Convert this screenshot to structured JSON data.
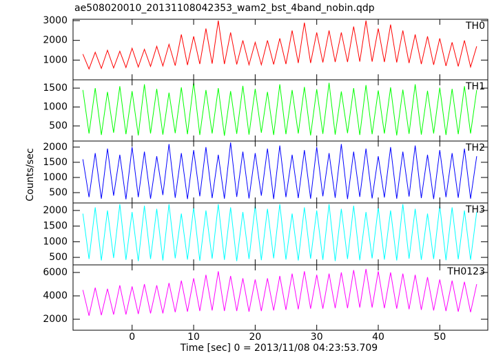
{
  "chart_data": [
    {
      "type": "line",
      "title": "ae508020010_20131108042353_wam2_bst_4band_nobin.qdp",
      "ylabel": "Counts/sec",
      "x": [
        -8,
        -7,
        -6,
        -5,
        -4,
        -3,
        -2,
        -1,
        0,
        1,
        2,
        3,
        4,
        5,
        6,
        7,
        8,
        9,
        10,
        11,
        12,
        13,
        14,
        15,
        16,
        17,
        18,
        19,
        20,
        21,
        22,
        23,
        24,
        25,
        26,
        27,
        28,
        29,
        30,
        31,
        32,
        33,
        34,
        35,
        36,
        37,
        38,
        39,
        40,
        41,
        42,
        43,
        44,
        45,
        46,
        47,
        48,
        49,
        50,
        51,
        52,
        53,
        54,
        55,
        56
      ],
      "series": [
        {
          "name": "TH0",
          "color": "#ff0000",
          "values": [
            1300,
            550,
            1400,
            580,
            1500,
            600,
            1450,
            620,
            1600,
            650,
            1550,
            680,
            1700,
            700,
            1800,
            720,
            2300,
            750,
            2200,
            800,
            2600,
            820,
            3000,
            800,
            2400,
            780,
            2000,
            760,
            1900,
            760,
            2000,
            780,
            2100,
            800,
            2500,
            850,
            2900,
            850,
            2400,
            880,
            2500,
            900,
            2400,
            900,
            2700,
            920,
            3000,
            920,
            2600,
            900,
            2800,
            880,
            2500,
            850,
            2300,
            800,
            2200,
            760,
            2100,
            700,
            1900,
            680,
            2000,
            650,
            1700
          ]
        }
      ],
      "xlim": [
        -9.6,
        57.8
      ],
      "xticks": [
        0,
        10,
        20,
        30,
        40,
        50
      ],
      "ylim": [
        0,
        3070
      ],
      "yticks": [
        1000,
        2000,
        3000
      ]
    },
    {
      "type": "line",
      "x": [
        -8,
        -7,
        -6,
        -5,
        -4,
        -3,
        -2,
        -1,
        0,
        1,
        2,
        3,
        4,
        5,
        6,
        7,
        8,
        9,
        10,
        11,
        12,
        13,
        14,
        15,
        16,
        17,
        18,
        19,
        20,
        21,
        22,
        23,
        24,
        25,
        26,
        27,
        28,
        29,
        30,
        31,
        32,
        33,
        34,
        35,
        36,
        37,
        38,
        39,
        40,
        41,
        42,
        43,
        44,
        45,
        46,
        47,
        48,
        49,
        50,
        51,
        52,
        53,
        54,
        55,
        56
      ],
      "series": [
        {
          "name": "TH1",
          "color": "#00ff00",
          "values": [
            1450,
            300,
            1500,
            260,
            1400,
            320,
            1550,
            280,
            1420,
            250,
            1600,
            300,
            1480,
            270,
            1380,
            310,
            1520,
            280,
            1650,
            260,
            1450,
            300,
            1500,
            240,
            1420,
            290,
            1560,
            270,
            1480,
            320,
            1400,
            260,
            1600,
            280,
            1450,
            300,
            1530,
            250,
            1470,
            290,
            1640,
            270,
            1410,
            310,
            1500,
            260,
            1580,
            280,
            1440,
            300,
            1520,
            250,
            1460,
            290,
            1600,
            270,
            1430,
            300,
            1510,
            260,
            1480,
            280,
            1550,
            300,
            1450
          ]
        }
      ],
      "xlim": [
        -9.6,
        57.8
      ],
      "xticks": [
        0,
        10,
        20,
        30,
        40,
        50
      ],
      "ylim": [
        100,
        1720
      ],
      "yticks": [
        500,
        1000,
        1500
      ]
    },
    {
      "type": "line",
      "x": [
        -8,
        -7,
        -6,
        -5,
        -4,
        -3,
        -2,
        -1,
        0,
        1,
        2,
        3,
        4,
        5,
        6,
        7,
        8,
        9,
        10,
        11,
        12,
        13,
        14,
        15,
        16,
        17,
        18,
        19,
        20,
        21,
        22,
        23,
        24,
        25,
        26,
        27,
        28,
        29,
        30,
        31,
        32,
        33,
        34,
        35,
        36,
        37,
        38,
        39,
        40,
        41,
        42,
        43,
        44,
        45,
        46,
        47,
        48,
        49,
        50,
        51,
        52,
        53,
        54,
        55,
        56
      ],
      "series": [
        {
          "name": "TH2",
          "color": "#0000ff",
          "values": [
            1600,
            350,
            1800,
            300,
            1950,
            400,
            1750,
            280,
            2000,
            350,
            1850,
            300,
            1700,
            420,
            2100,
            330,
            1800,
            290,
            1900,
            380,
            2000,
            320,
            1750,
            300,
            2150,
            360,
            1850,
            310,
            1800,
            400,
            1950,
            290,
            2050,
            350,
            1750,
            320,
            1900,
            300,
            2000,
            380,
            1800,
            330,
            2100,
            290,
            1850,
            360,
            1950,
            310,
            1700,
            340,
            2000,
            300,
            1850,
            370,
            2050,
            320,
            1750,
            290,
            1900,
            350,
            1800,
            330,
            1950,
            300,
            1700
          ]
        }
      ],
      "xlim": [
        -9.6,
        57.8
      ],
      "xticks": [
        0,
        10,
        20,
        30,
        40,
        50
      ],
      "ylim": [
        160,
        2200
      ],
      "yticks": [
        500,
        1000,
        1500,
        2000
      ]
    },
    {
      "type": "line",
      "x": [
        -8,
        -7,
        -6,
        -5,
        -4,
        -3,
        -2,
        -1,
        0,
        1,
        2,
        3,
        4,
        5,
        6,
        7,
        8,
        9,
        10,
        11,
        12,
        13,
        14,
        15,
        16,
        17,
        18,
        19,
        20,
        21,
        22,
        23,
        24,
        25,
        26,
        27,
        28,
        29,
        30,
        31,
        32,
        33,
        34,
        35,
        36,
        37,
        38,
        39,
        40,
        41,
        42,
        43,
        44,
        45,
        46,
        47,
        48,
        49,
        50,
        51,
        52,
        53,
        54,
        55,
        56
      ],
      "series": [
        {
          "name": "TH3",
          "color": "#00ffff",
          "values": [
            1900,
            450,
            2100,
            400,
            2000,
            480,
            2200,
            420,
            1950,
            380,
            2150,
            450,
            2050,
            400,
            2200,
            470,
            1900,
            430,
            2100,
            390,
            2000,
            460,
            2200,
            420,
            2100,
            380,
            1950,
            450,
            2150,
            410,
            2050,
            470,
            2200,
            430,
            1900,
            400,
            2100,
            460,
            2000,
            420,
            2200,
            380,
            2050,
            450,
            2150,
            410,
            1950,
            470,
            2100,
            430,
            2000,
            400,
            2200,
            460,
            2050,
            420,
            1900,
            450,
            2150,
            410,
            2100,
            440,
            2000,
            420,
            1950
          ]
        }
      ],
      "xlim": [
        -9.6,
        57.8
      ],
      "xticks": [
        0,
        10,
        20,
        30,
        40,
        50
      ],
      "ylim": [
        260,
        2240
      ],
      "yticks": [
        500,
        1000,
        1500,
        2000
      ]
    },
    {
      "type": "line",
      "xlabel": "Time [sec] 0 = 2013/11/08 04:23:53.709",
      "x": [
        -8,
        -7,
        -6,
        -5,
        -4,
        -3,
        -2,
        -1,
        0,
        1,
        2,
        3,
        4,
        5,
        6,
        7,
        8,
        9,
        10,
        11,
        12,
        13,
        14,
        15,
        16,
        17,
        18,
        19,
        20,
        21,
        22,
        23,
        24,
        25,
        26,
        27,
        28,
        29,
        30,
        31,
        32,
        33,
        34,
        35,
        36,
        37,
        38,
        39,
        40,
        41,
        42,
        43,
        44,
        45,
        46,
        47,
        48,
        49,
        50,
        51,
        52,
        53,
        54,
        55,
        56
      ],
      "series": [
        {
          "name": "TH0123",
          "color": "#ff00ff",
          "values": [
            4500,
            2300,
            4700,
            2350,
            4600,
            2400,
            4900,
            2400,
            4800,
            2450,
            5000,
            2500,
            4900,
            2500,
            5100,
            2600,
            5300,
            2650,
            5500,
            2700,
            5800,
            2750,
            6100,
            2700,
            5700,
            2700,
            5500,
            2650,
            5400,
            2700,
            5500,
            2750,
            5700,
            2800,
            5900,
            2850,
            6100,
            2900,
            5800,
            2900,
            5900,
            2950,
            6000,
            2950,
            6200,
            3000,
            6300,
            3000,
            6100,
            2950,
            6000,
            2900,
            5900,
            2850,
            5800,
            2800,
            5600,
            2750,
            5400,
            2700,
            5300,
            2650,
            5200,
            2600,
            5000
          ]
        }
      ],
      "xlim": [
        -9.6,
        57.8
      ],
      "xticks": [
        0,
        10,
        20,
        30,
        40,
        50
      ],
      "ylim": [
        1060,
        6650
      ],
      "yticks": [
        2000,
        4000,
        6000
      ],
      "xtick_labels": true
    }
  ]
}
